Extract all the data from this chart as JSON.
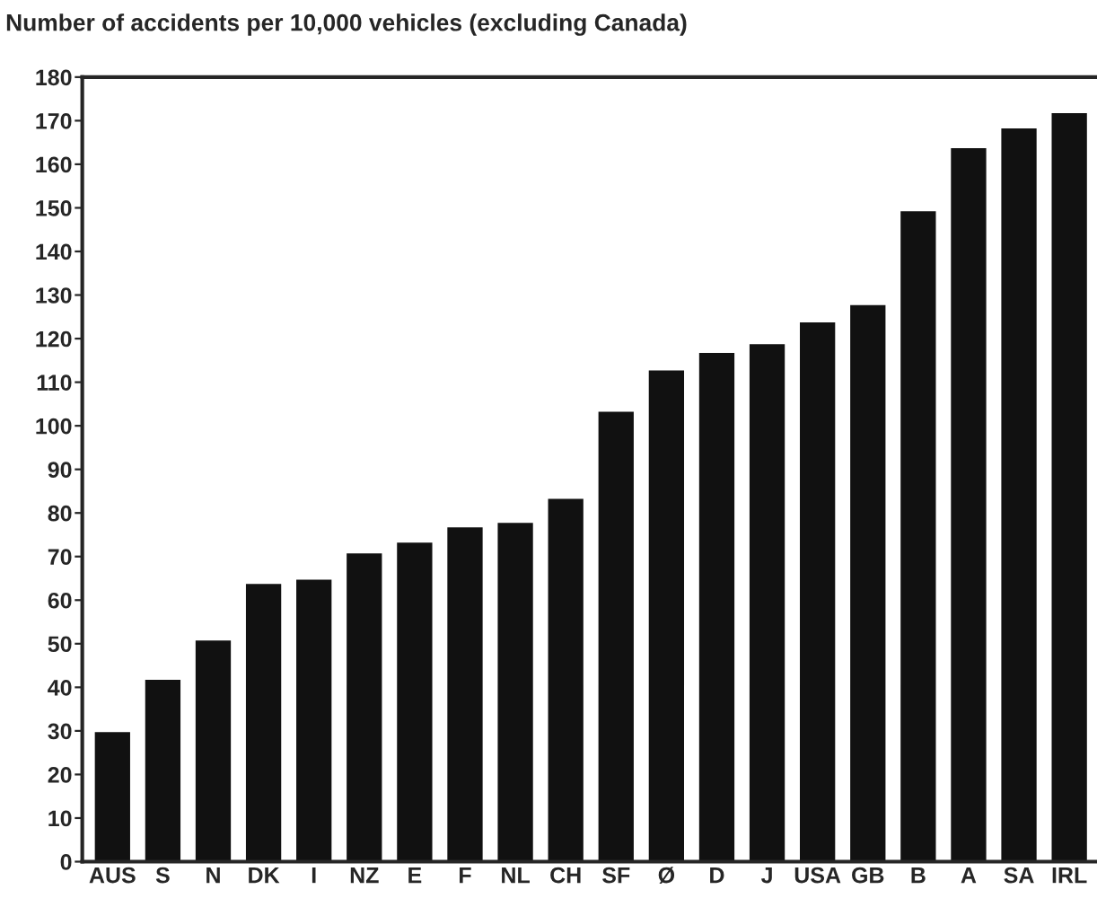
{
  "chart_data": {
    "type": "bar",
    "title": "Number of accidents per 10,000 vehicles (excluding Canada)",
    "categories": [
      "AUS",
      "S",
      "N",
      "DK",
      "I",
      "NZ",
      "E",
      "F",
      "NL",
      "CH",
      "SF",
      "Ø",
      "D",
      "J",
      "USA",
      "GB",
      "B",
      "A",
      "SA",
      "IRL"
    ],
    "values": [
      30,
      42,
      51,
      64,
      65,
      71,
      73.5,
      77,
      78,
      83.5,
      103.5,
      113,
      117,
      119,
      124,
      128,
      149.5,
      164,
      168.5,
      172
    ],
    "color": "#111111",
    "ylim": [
      0,
      180
    ],
    "yticks": [
      0,
      10,
      20,
      30,
      40,
      50,
      60,
      70,
      80,
      90,
      100,
      110,
      120,
      130,
      140,
      150,
      160,
      170,
      180
    ],
    "grid": false
  }
}
